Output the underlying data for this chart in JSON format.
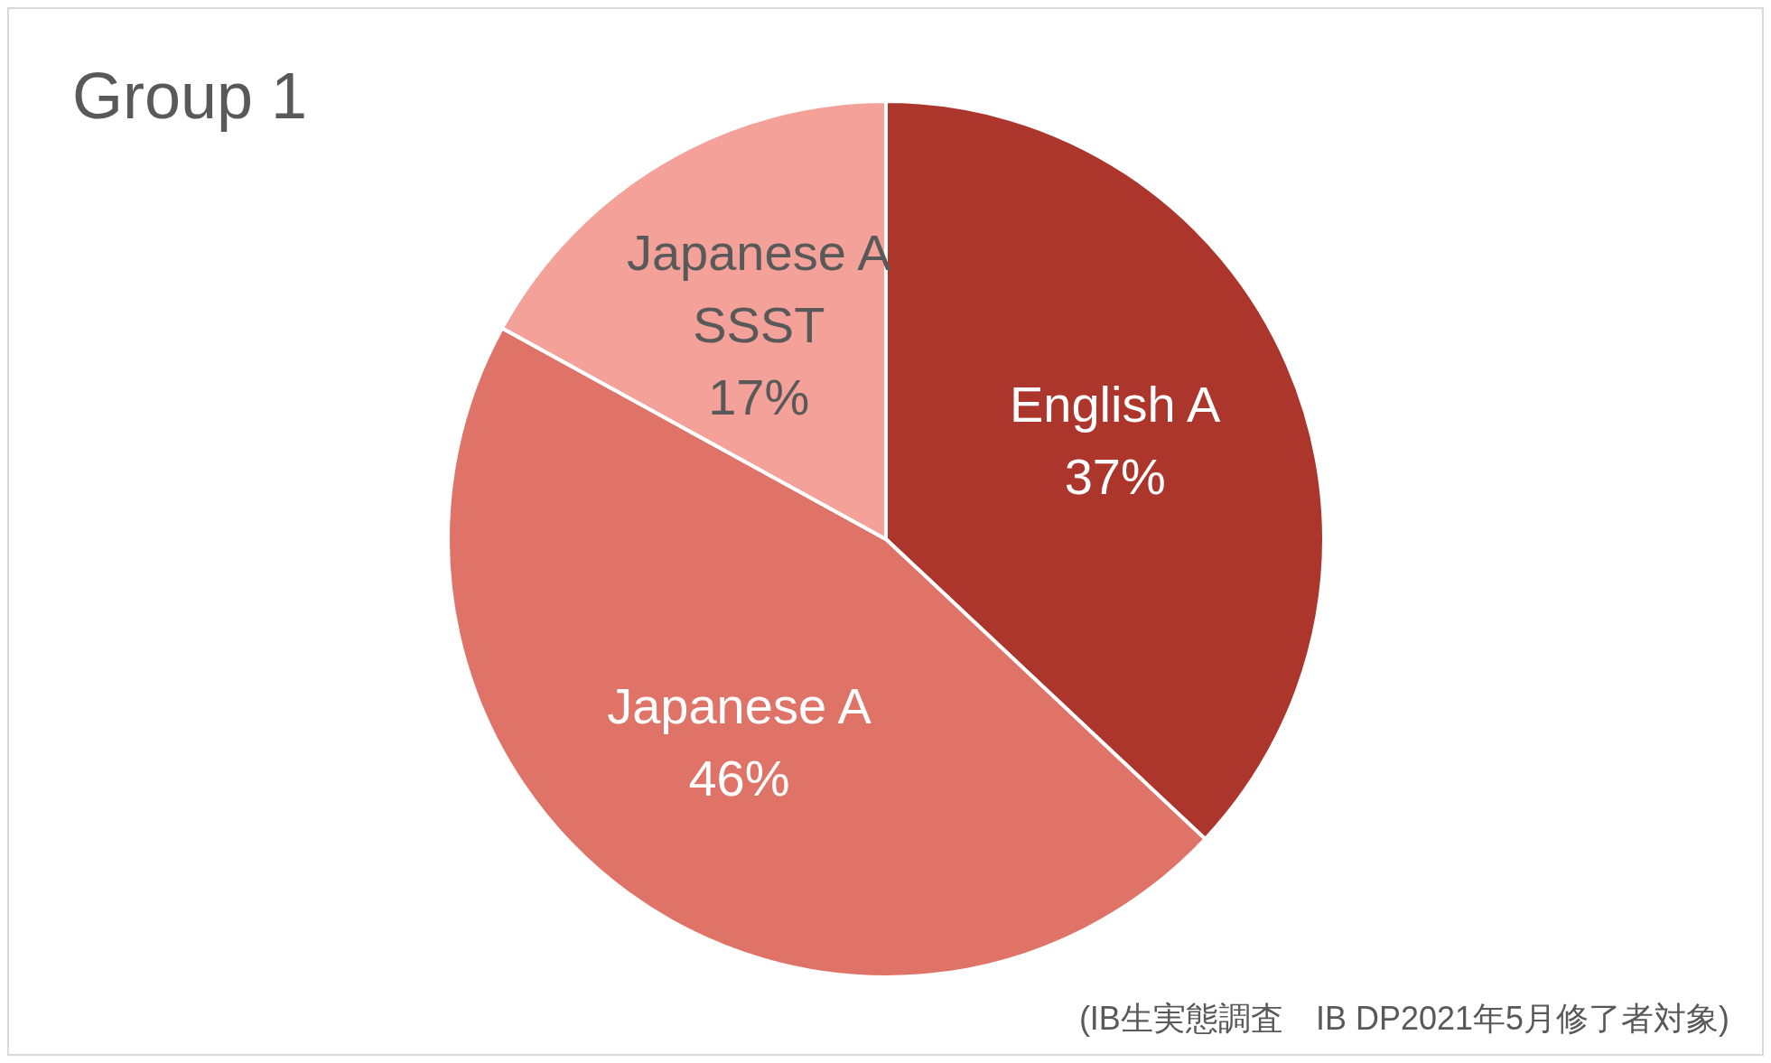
{
  "chart_data": {
    "type": "pie",
    "title": "Group 1",
    "categories": [
      "English A",
      "Japanese A",
      "Japanese A SSST"
    ],
    "values": [
      37,
      46,
      17
    ],
    "value_labels": [
      "37%",
      "46%",
      "17%"
    ],
    "colors": [
      "#ac362c",
      "#df7367",
      "#f4a19a"
    ],
    "legend": false,
    "annotations": [
      "(IB生実態調査　IB DP2021年5月修了者対象)"
    ]
  }
}
